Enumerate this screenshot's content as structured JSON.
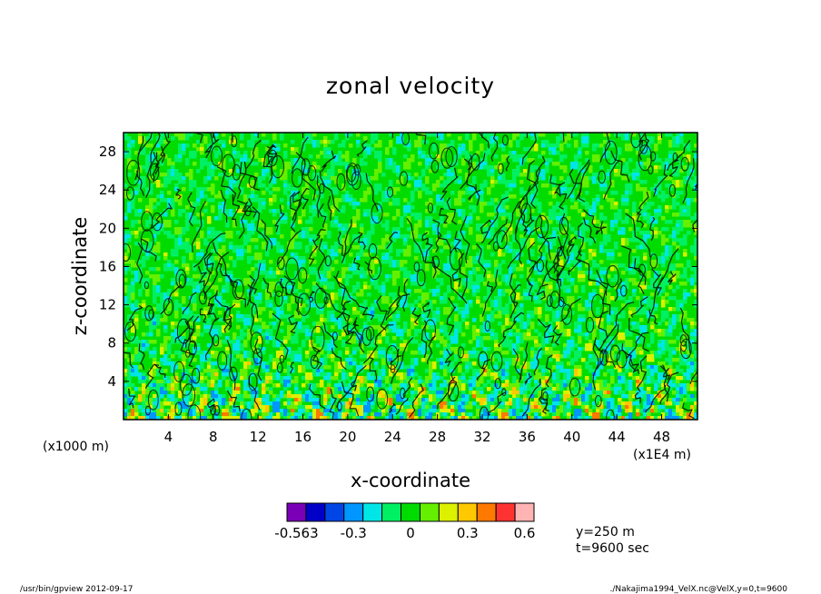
{
  "chart_data": {
    "type": "heatmap",
    "title": "zonal velocity",
    "xlabel": "x-coordinate",
    "ylabel": "z-coordinate",
    "x_unit": "(x1E4 m)",
    "y_unit": "(x1000 m)",
    "xlim": [
      0,
      51.2
    ],
    "ylim": [
      0,
      30
    ],
    "x_ticks": [
      4,
      8,
      12,
      16,
      20,
      24,
      28,
      32,
      36,
      40,
      44,
      48
    ],
    "y_ticks": [
      4,
      8,
      12,
      16,
      20,
      24,
      28
    ],
    "colorbar": {
      "levels": [
        -0.563,
        -0.5,
        -0.4,
        -0.3,
        -0.2,
        -0.1,
        0,
        0.1,
        0.2,
        0.3,
        0.4,
        0.5,
        0.6
      ],
      "colors": [
        "#7a00b8",
        "#0000c8",
        "#0046e6",
        "#0096ff",
        "#00e6e6",
        "#00f064",
        "#00dc00",
        "#64f000",
        "#dcf000",
        "#ffc800",
        "#ff7800",
        "#ff3232",
        "#ffb4b4"
      ],
      "labels": [
        {
          "value": -0.563,
          "text": "-0.563"
        },
        {
          "value": -0.3,
          "text": "-0.3"
        },
        {
          "value": 0,
          "text": "0"
        },
        {
          "value": 0.3,
          "text": "0.3"
        },
        {
          "value": 0.6,
          "text": "0.6"
        }
      ]
    },
    "info": [
      "y=250 m",
      "t=9600 sec"
    ],
    "footer_left": "/usr/bin/gpview  2012-09-17",
    "footer_right": "./Nakajima1994_VelX.nc@VelX,y=0,t=9600"
  }
}
